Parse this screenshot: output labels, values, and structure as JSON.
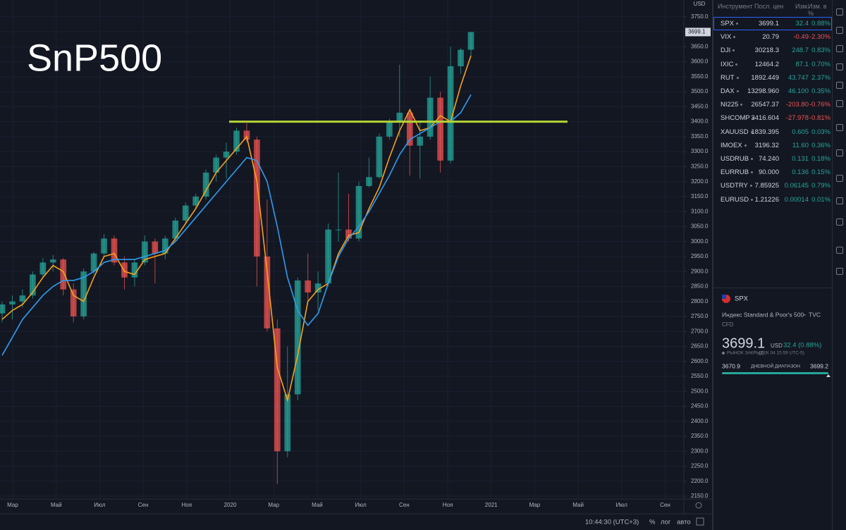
{
  "title": "SnP500",
  "chart_data": {
    "type": "candlestick",
    "currency": "USD",
    "up_color": "#26a69a",
    "down_color": "#ef5350",
    "open": [
      2760,
      2790,
      2800,
      2820,
      2890,
      2930,
      2940,
      2840,
      2750,
      2900,
      2960,
      3010,
      2930,
      2880,
      2930,
      3000,
      2960,
      3010,
      3070,
      3120,
      3150,
      3230,
      3280,
      3300,
      3370,
      3340,
      2950,
      2710,
      2300,
      2490,
      2870,
      2830,
      2860,
      3040,
      3040,
      3010,
      3185,
      3215,
      3350,
      3400,
      3430,
      3320,
      3350,
      3480,
      3270,
      3585,
      3640
    ],
    "high": [
      2800,
      2820,
      2840,
      2900,
      2945,
      2955,
      2945,
      2860,
      2910,
      2965,
      3025,
      3020,
      2950,
      2940,
      3020,
      3010,
      3020,
      3080,
      3130,
      3160,
      3240,
      3290,
      3330,
      3380,
      3395,
      3350,
      3140,
      2740,
      2650,
      2880,
      2960,
      2900,
      3060,
      3230,
      3160,
      3200,
      3280,
      3360,
      3410,
      3590,
      3440,
      3400,
      3550,
      3500,
      3650,
      3645,
      3700
    ],
    "low": [
      2730,
      2740,
      2780,
      2810,
      2880,
      2900,
      2820,
      2730,
      2740,
      2890,
      2950,
      2920,
      2840,
      2850,
      2920,
      2860,
      2940,
      3000,
      3060,
      3110,
      3140,
      3200,
      3210,
      3290,
      3330,
      2850,
      2700,
      2190,
      2280,
      2470,
      2800,
      2770,
      2850,
      3000,
      3000,
      3000,
      3180,
      3210,
      3340,
      3350,
      3220,
      3210,
      3340,
      3230,
      3260,
      3560,
      3620
    ],
    "close": [
      2790,
      2800,
      2820,
      2890,
      2930,
      2940,
      2840,
      2750,
      2900,
      2960,
      3010,
      2930,
      2880,
      2930,
      3000,
      2960,
      3010,
      3070,
      3120,
      3150,
      3230,
      3280,
      3300,
      3370,
      3340,
      2950,
      2710,
      2300,
      2490,
      2870,
      2830,
      2860,
      3040,
      3040,
      3010,
      3185,
      3215,
      3350,
      3400,
      3430,
      3320,
      3350,
      3480,
      3270,
      3585,
      3640,
      3699.1
    ],
    "moving_averages": [
      {
        "color": "#f7a21b",
        "values": [
          2740,
          2770,
          2790,
          2830,
          2880,
          2920,
          2900,
          2820,
          2800,
          2880,
          2950,
          2960,
          2900,
          2890,
          2940,
          2950,
          2960,
          3010,
          3060,
          3110,
          3170,
          3230,
          3270,
          3310,
          3350,
          3200,
          2900,
          2580,
          2470,
          2620,
          2800,
          2840,
          2860,
          2960,
          3020,
          3030,
          3110,
          3180,
          3280,
          3370,
          3440,
          3370,
          3380,
          3420,
          3400,
          3520,
          3620
        ]
      },
      {
        "color": "#2e9cf0",
        "values": [
          2620,
          2680,
          2740,
          2780,
          2820,
          2850,
          2870,
          2870,
          2880,
          2900,
          2930,
          2940,
          2940,
          2940,
          2950,
          2960,
          2970,
          3000,
          3040,
          3080,
          3120,
          3160,
          3200,
          3240,
          3280,
          3270,
          3200,
          3050,
          2880,
          2770,
          2720,
          2760,
          2860,
          2950,
          3010,
          3050,
          3100,
          3160,
          3220,
          3290,
          3340,
          3360,
          3380,
          3400,
          3400,
          3430,
          3490
        ]
      }
    ],
    "levels": [
      {
        "value": 3400,
        "color": "#b5d334"
      }
    ],
    "ylim": [
      2136,
      3806
    ],
    "yticks": [
      {
        "value": 2150,
        "label": "2150.0"
      },
      {
        "value": 2200,
        "label": "2200.0"
      },
      {
        "value": 2250,
        "label": "2250.0"
      },
      {
        "value": 2300,
        "label": "2300.0"
      },
      {
        "value": 2350,
        "label": "2350.0"
      },
      {
        "value": 2400,
        "label": "2400.0"
      },
      {
        "value": 2450,
        "label": "2450.0"
      },
      {
        "value": 2500,
        "label": "2500.0"
      },
      {
        "value": 2550,
        "label": "2550.0"
      },
      {
        "value": 2600,
        "label": "2600.0"
      },
      {
        "value": 2650,
        "label": "2650.0"
      },
      {
        "value": 2700,
        "label": "2700.0"
      },
      {
        "value": 2750,
        "label": "2750.0"
      },
      {
        "value": 2800,
        "label": "2800.0"
      },
      {
        "value": 2850,
        "label": "2850.0"
      },
      {
        "value": 2900,
        "label": "2900.0"
      },
      {
        "value": 2950,
        "label": "2950.0"
      },
      {
        "value": 3000,
        "label": "3000.0"
      },
      {
        "value": 3050,
        "label": "3050.0"
      },
      {
        "value": 3100,
        "label": "3100.0"
      },
      {
        "value": 3150,
        "label": "3150.0"
      },
      {
        "value": 3200,
        "label": "3200.0"
      },
      {
        "value": 3250,
        "label": "3250.0"
      },
      {
        "value": 3300,
        "label": "3300.0"
      },
      {
        "value": 3350,
        "label": "3350.0"
      },
      {
        "value": 3400,
        "label": "3400.0"
      },
      {
        "value": 3450,
        "label": "3450.0"
      },
      {
        "value": 3500,
        "label": "3500.0"
      },
      {
        "value": 3550,
        "label": "3550.0"
      },
      {
        "value": 3600,
        "label": "3600.0"
      },
      {
        "value": 3650,
        "label": "3650.0"
      },
      {
        "value": 3700,
        "label": "3700.0"
      },
      {
        "value": 3750,
        "label": "3750.0"
      }
    ],
    "xticks": [
      "Мар",
      "Май",
      "Июл",
      "Сен",
      "Ноя",
      "2020",
      "Мар",
      "Май",
      "Июл",
      "Сен",
      "Ноя",
      "2021",
      "Мар",
      "Май",
      "Июл",
      "Сен"
    ]
  },
  "watchlist": {
    "columns": [
      "Инструмент",
      "Посл. цен",
      "Изм.",
      "Изм. в %"
    ],
    "rows": [
      [
        "SPX",
        "3699.1",
        "32.4",
        "0.88%"
      ],
      [
        "VIX",
        "20.79",
        "-0.49",
        "-2.30%"
      ],
      [
        "DJI",
        "30218.3",
        "248.7",
        "0.83%"
      ],
      [
        "IXIC",
        "12464.2",
        "87.1",
        "0.70%"
      ],
      [
        "RUT",
        "1892.449",
        "43.747",
        "2.37%"
      ],
      [
        "DAX",
        "13298.960",
        "46.100",
        "0.35%"
      ],
      [
        "NI225",
        "26547.37",
        "-203.80",
        "-0.76%"
      ],
      [
        "SHCOMP",
        "3416.604",
        "-27.978",
        "-0.81%"
      ],
      [
        "XAUUSD",
        "1839.395",
        "0.605",
        "0.03%"
      ],
      [
        "IMOEX",
        "3196.32",
        "11.60",
        "0.36%"
      ],
      [
        "USDRUB",
        "74.240",
        "0.131",
        "0.18%"
      ],
      [
        "EURRUB",
        "90.000",
        "0.136",
        "0.15%"
      ],
      [
        "USDTRY",
        "7.85925",
        "0.06145",
        "0.79%"
      ],
      [
        "EURUSD",
        "1.21226",
        "0.00014",
        "0.01%"
      ]
    ]
  },
  "details": {
    "symbol": "SPX",
    "description": "Индекс Standard & Poor's 500",
    "exchange": "TVC",
    "kind": "CFD",
    "price": "3699.1",
    "currency": "USD",
    "change": "32.4 (0.88%)",
    "status": "РЫНОК ЗАКРЫТ",
    "status_time": "(ДЕК 04 15:59 UTC-5)",
    "range_low": "3670.9",
    "range_label": "ДНЕВНОЙ ДИАПАЗОН",
    "range_high": "3699.2"
  },
  "statusbar": {
    "time": "10:44:30 (UTC+3)",
    "percent": "%",
    "log": "лог",
    "auto": "авто"
  }
}
